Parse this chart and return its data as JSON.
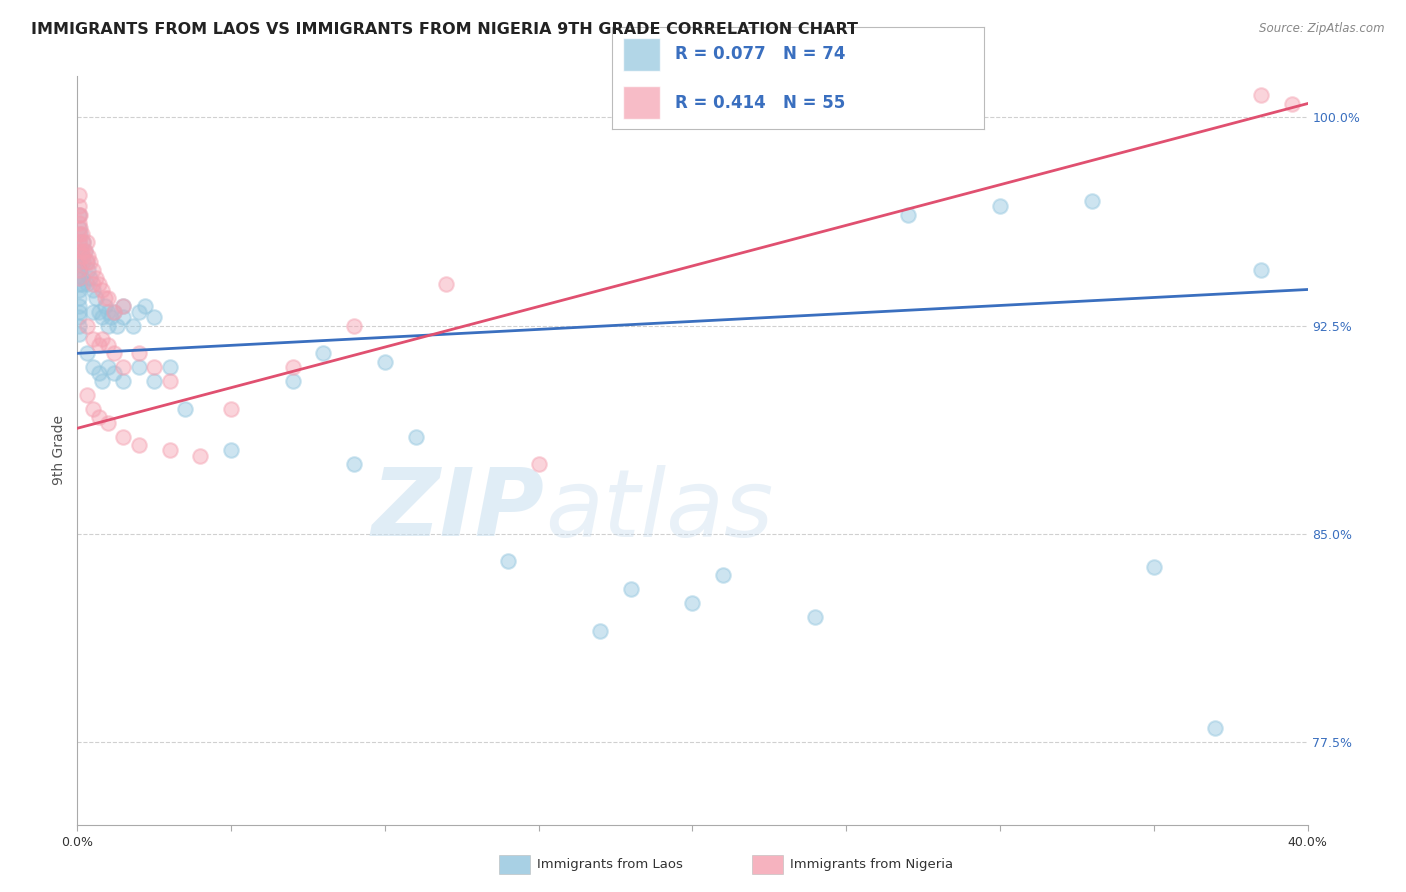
{
  "title": "IMMIGRANTS FROM LAOS VS IMMIGRANTS FROM NIGERIA 9TH GRADE CORRELATION CHART",
  "source": "Source: ZipAtlas.com",
  "ylabel": "9th Grade",
  "xlim": [
    0.0,
    40.0
  ],
  "ylim": [
    74.5,
    101.5
  ],
  "ytick_positions": [
    77.5,
    85.0,
    92.5,
    100.0
  ],
  "ytick_labels": [
    "77.5%",
    "85.0%",
    "92.5%",
    "100.0%"
  ],
  "laos_color": "#92c5de",
  "nigeria_color": "#f4a0b0",
  "laos_line_color": "#3a6fbf",
  "nigeria_line_color": "#e05070",
  "laos_R": 0.077,
  "laos_N": 74,
  "nigeria_R": 0.414,
  "nigeria_N": 55,
  "laos_scatter": [
    [
      0.05,
      96.5
    ],
    [
      0.05,
      96.0
    ],
    [
      0.05,
      95.5
    ],
    [
      0.05,
      95.0
    ],
    [
      0.05,
      94.8
    ],
    [
      0.05,
      94.5
    ],
    [
      0.05,
      94.2
    ],
    [
      0.05,
      94.0
    ],
    [
      0.05,
      93.8
    ],
    [
      0.05,
      93.5
    ],
    [
      0.05,
      93.2
    ],
    [
      0.05,
      93.0
    ],
    [
      0.05,
      92.8
    ],
    [
      0.05,
      92.5
    ],
    [
      0.05,
      92.2
    ],
    [
      0.1,
      95.8
    ],
    [
      0.1,
      95.2
    ],
    [
      0.1,
      94.5
    ],
    [
      0.15,
      95.0
    ],
    [
      0.15,
      94.2
    ],
    [
      0.2,
      95.5
    ],
    [
      0.2,
      94.8
    ],
    [
      0.2,
      94.0
    ],
    [
      0.25,
      95.2
    ],
    [
      0.3,
      94.8
    ],
    [
      0.3,
      94.0
    ],
    [
      0.35,
      94.5
    ],
    [
      0.4,
      94.2
    ],
    [
      0.5,
      93.8
    ],
    [
      0.5,
      93.0
    ],
    [
      0.6,
      93.5
    ],
    [
      0.7,
      93.0
    ],
    [
      0.8,
      92.8
    ],
    [
      0.9,
      93.2
    ],
    [
      1.0,
      93.0
    ],
    [
      1.0,
      92.5
    ],
    [
      1.1,
      92.8
    ],
    [
      1.2,
      93.0
    ],
    [
      1.3,
      92.5
    ],
    [
      1.5,
      93.2
    ],
    [
      1.5,
      92.8
    ],
    [
      1.8,
      92.5
    ],
    [
      2.0,
      93.0
    ],
    [
      2.2,
      93.2
    ],
    [
      2.5,
      92.8
    ],
    [
      0.3,
      91.5
    ],
    [
      0.5,
      91.0
    ],
    [
      0.7,
      90.8
    ],
    [
      0.8,
      90.5
    ],
    [
      1.0,
      91.0
    ],
    [
      1.2,
      90.8
    ],
    [
      1.5,
      90.5
    ],
    [
      2.0,
      91.0
    ],
    [
      2.5,
      90.5
    ],
    [
      3.0,
      91.0
    ],
    [
      3.5,
      89.5
    ],
    [
      5.0,
      88.0
    ],
    [
      7.0,
      90.5
    ],
    [
      8.0,
      91.5
    ],
    [
      9.0,
      87.5
    ],
    [
      10.0,
      91.2
    ],
    [
      11.0,
      88.5
    ],
    [
      14.0,
      84.0
    ],
    [
      17.0,
      81.5
    ],
    [
      18.0,
      83.0
    ],
    [
      20.0,
      82.5
    ],
    [
      21.0,
      83.5
    ],
    [
      24.0,
      82.0
    ],
    [
      27.0,
      96.5
    ],
    [
      30.0,
      96.8
    ],
    [
      33.0,
      97.0
    ],
    [
      35.0,
      83.8
    ],
    [
      37.0,
      78.0
    ],
    [
      38.5,
      94.5
    ]
  ],
  "nigeria_scatter": [
    [
      0.05,
      97.2
    ],
    [
      0.05,
      96.8
    ],
    [
      0.05,
      96.5
    ],
    [
      0.05,
      96.2
    ],
    [
      0.05,
      95.8
    ],
    [
      0.05,
      95.5
    ],
    [
      0.05,
      95.2
    ],
    [
      0.05,
      94.8
    ],
    [
      0.05,
      94.5
    ],
    [
      0.05,
      94.2
    ],
    [
      0.1,
      96.5
    ],
    [
      0.1,
      96.0
    ],
    [
      0.15,
      95.8
    ],
    [
      0.15,
      95.2
    ],
    [
      0.2,
      95.5
    ],
    [
      0.2,
      95.0
    ],
    [
      0.25,
      95.2
    ],
    [
      0.3,
      95.5
    ],
    [
      0.3,
      94.8
    ],
    [
      0.35,
      95.0
    ],
    [
      0.4,
      94.8
    ],
    [
      0.5,
      94.5
    ],
    [
      0.5,
      94.0
    ],
    [
      0.6,
      94.2
    ],
    [
      0.7,
      94.0
    ],
    [
      0.8,
      93.8
    ],
    [
      0.9,
      93.5
    ],
    [
      1.0,
      93.5
    ],
    [
      1.2,
      93.0
    ],
    [
      1.5,
      93.2
    ],
    [
      0.3,
      92.5
    ],
    [
      0.5,
      92.0
    ],
    [
      0.7,
      91.8
    ],
    [
      0.8,
      92.0
    ],
    [
      1.0,
      91.8
    ],
    [
      1.2,
      91.5
    ],
    [
      1.5,
      91.0
    ],
    [
      2.0,
      91.5
    ],
    [
      2.5,
      91.0
    ],
    [
      3.0,
      90.5
    ],
    [
      0.3,
      90.0
    ],
    [
      0.5,
      89.5
    ],
    [
      0.7,
      89.2
    ],
    [
      1.0,
      89.0
    ],
    [
      1.5,
      88.5
    ],
    [
      2.0,
      88.2
    ],
    [
      3.0,
      88.0
    ],
    [
      4.0,
      87.8
    ],
    [
      5.0,
      89.5
    ],
    [
      7.0,
      91.0
    ],
    [
      9.0,
      92.5
    ],
    [
      12.0,
      94.0
    ],
    [
      15.0,
      87.5
    ],
    [
      38.5,
      100.8
    ],
    [
      39.5,
      100.5
    ]
  ],
  "watermark_zip": "ZIP",
  "watermark_atlas": "atlas",
  "background_color": "#ffffff",
  "grid_color": "#d0d0d0",
  "title_fontsize": 11.5,
  "axis_label_fontsize": 10,
  "tick_fontsize": 9,
  "legend_fontsize": 12
}
